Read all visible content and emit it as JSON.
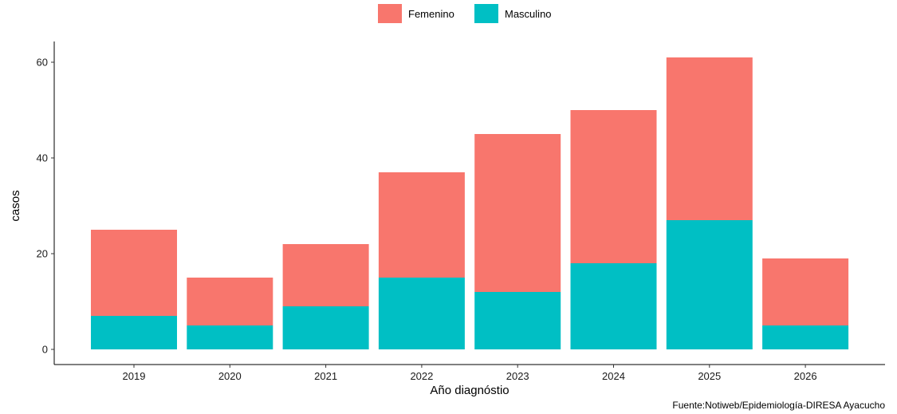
{
  "chart_data": {
    "type": "bar",
    "stacked": true,
    "categories": [
      "2019",
      "2020",
      "2021",
      "2022",
      "2023",
      "2024",
      "2025",
      "2026"
    ],
    "series": [
      {
        "name": "Masculino",
        "color": "#00BFC4",
        "values": [
          7,
          5,
          9,
          15,
          12,
          18,
          27,
          5
        ]
      },
      {
        "name": "Femenino",
        "color": "#F8766D",
        "values": [
          18,
          10,
          13,
          22,
          33,
          32,
          34,
          14
        ]
      }
    ],
    "legend_order": [
      "Femenino",
      "Masculino"
    ],
    "legend_position": "top-center",
    "xlabel": "Año diagnóstio",
    "ylabel": "casos",
    "ylim": [
      0,
      65
    ],
    "yticks": [
      0,
      20,
      40,
      60
    ],
    "grid": false,
    "caption": "Fuente:Notiweb/Epidemiología-DIRESA Ayacucho"
  }
}
